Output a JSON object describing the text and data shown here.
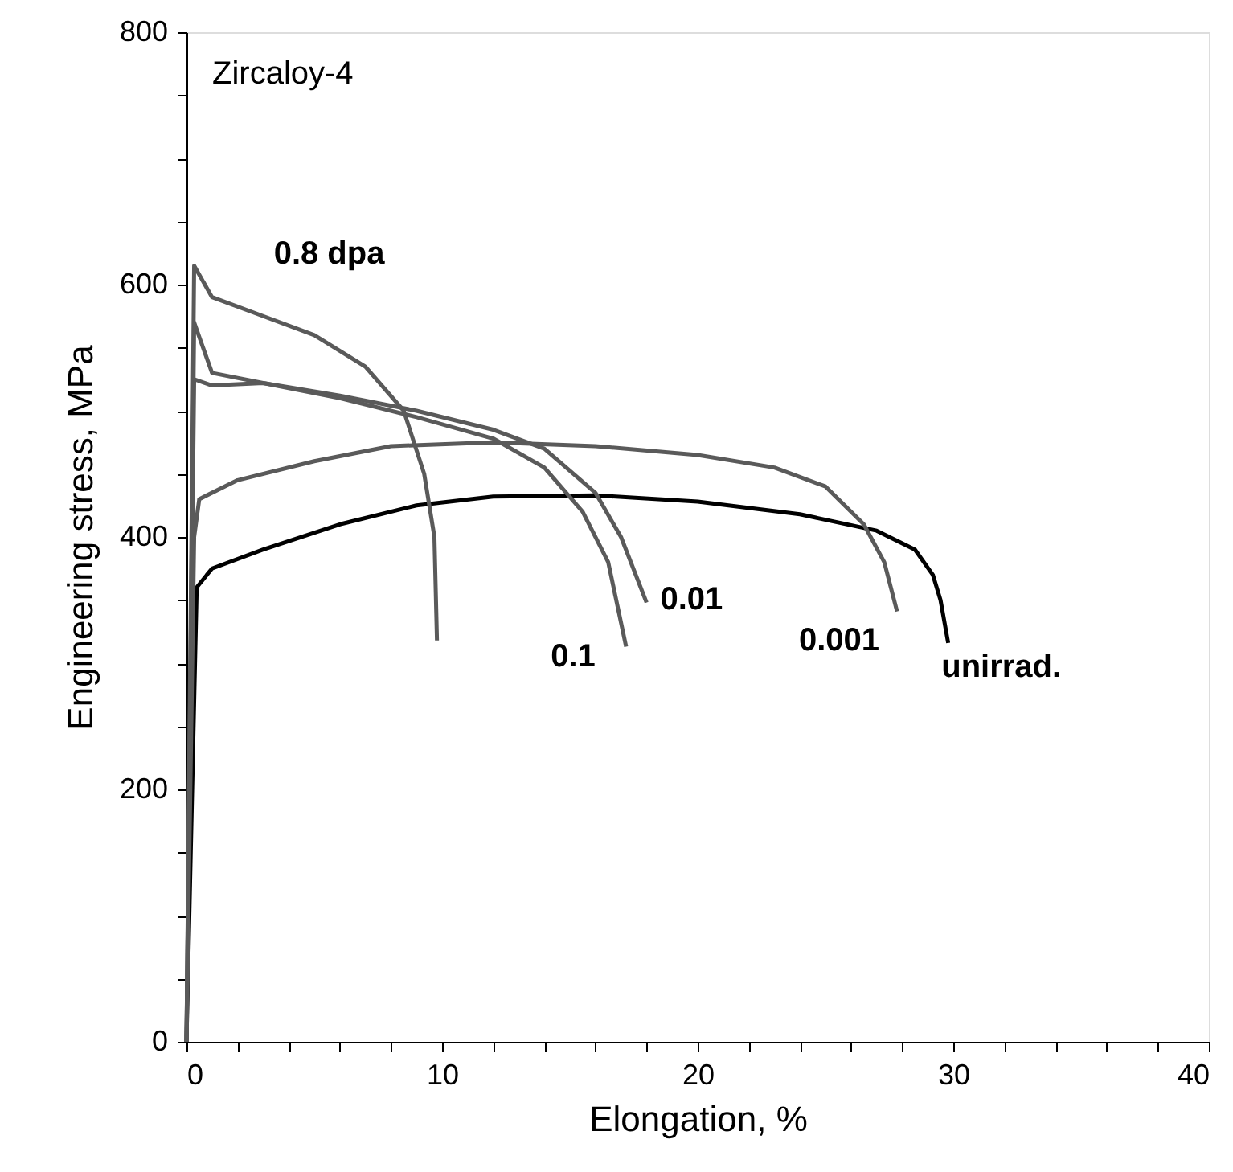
{
  "chart_data": {
    "type": "line",
    "xlabel": "Elongation, %",
    "ylabel": "Engineering stress, MPa",
    "xlim": [
      0,
      40
    ],
    "ylim": [
      0,
      800
    ],
    "xticks": [
      0,
      {
        "value": 2,
        "label": null
      },
      {
        "value": 4,
        "label": null
      },
      {
        "value": 6,
        "label": null
      },
      {
        "value": 8,
        "label": null
      },
      10,
      {
        "value": 12,
        "label": null
      },
      {
        "value": 14,
        "label": null
      },
      {
        "value": 16,
        "label": null
      },
      {
        "value": 18,
        "label": null
      },
      20,
      {
        "value": 22,
        "label": null
      },
      {
        "value": 24,
        "label": null
      },
      {
        "value": 26,
        "label": null
      },
      {
        "value": 28,
        "label": null
      },
      30,
      {
        "value": 32,
        "label": null
      },
      {
        "value": 34,
        "label": null
      },
      {
        "value": 36,
        "label": null
      },
      {
        "value": 38,
        "label": null
      },
      40
    ],
    "yticks": [
      0,
      {
        "value": 50,
        "label": null
      },
      {
        "value": 100,
        "label": null
      },
      {
        "value": 150,
        "label": null
      },
      200,
      {
        "value": 250,
        "label": null
      },
      {
        "value": 300,
        "label": null
      },
      {
        "value": 350,
        "label": null
      },
      400,
      {
        "value": 450,
        "label": null
      },
      {
        "value": 500,
        "label": null
      },
      {
        "value": 550,
        "label": null
      },
      600,
      {
        "value": 650,
        "label": null
      },
      {
        "value": 700,
        "label": null
      },
      {
        "value": 750,
        "label": null
      },
      800
    ],
    "grid": false,
    "marker": "none",
    "line_style": "solid",
    "series": [
      {
        "name": "unirrad.",
        "color": "#000000",
        "x": [
          0,
          0.4,
          1,
          3,
          6,
          9,
          12,
          16,
          20,
          24,
          27,
          28.5,
          29.2,
          29.5,
          29.8
        ],
        "values": [
          0,
          360,
          375,
          390,
          410,
          425,
          432,
          433,
          428,
          418,
          405,
          390,
          370,
          350,
          316
        ]
      },
      {
        "name": "0.001",
        "color": "#5a5a5a",
        "x": [
          0,
          0.3,
          0.5,
          2,
          5,
          8,
          12,
          16,
          20,
          23,
          25,
          26.5,
          27.3,
          27.8
        ],
        "values": [
          0,
          400,
          430,
          445,
          460,
          472,
          475,
          472,
          465,
          455,
          440,
          410,
          380,
          341
        ]
      },
      {
        "name": "0.01",
        "color": "#5a5a5a",
        "x": [
          0,
          0.3,
          1,
          3,
          6,
          9,
          12,
          14,
          16,
          17,
          18
        ],
        "values": [
          0,
          570,
          530,
          522,
          512,
          500,
          485,
          470,
          435,
          400,
          348
        ]
      },
      {
        "name": "0.1",
        "color": "#5a5a5a",
        "x": [
          0,
          0.3,
          1,
          3,
          6,
          9,
          12,
          14,
          15.5,
          16.5,
          17.2
        ],
        "values": [
          0,
          525,
          520,
          522,
          510,
          495,
          478,
          455,
          420,
          380,
          313
        ]
      },
      {
        "name": "0.8 dpa",
        "color": "#5a5a5a",
        "x": [
          0,
          0.3,
          1,
          3,
          5,
          7,
          8.5,
          9.3,
          9.7,
          9.8
        ],
        "values": [
          0,
          615,
          590,
          575,
          560,
          535,
          500,
          450,
          400,
          318
        ]
      }
    ],
    "annotations": [
      "Zircaloy-4"
    ]
  }
}
